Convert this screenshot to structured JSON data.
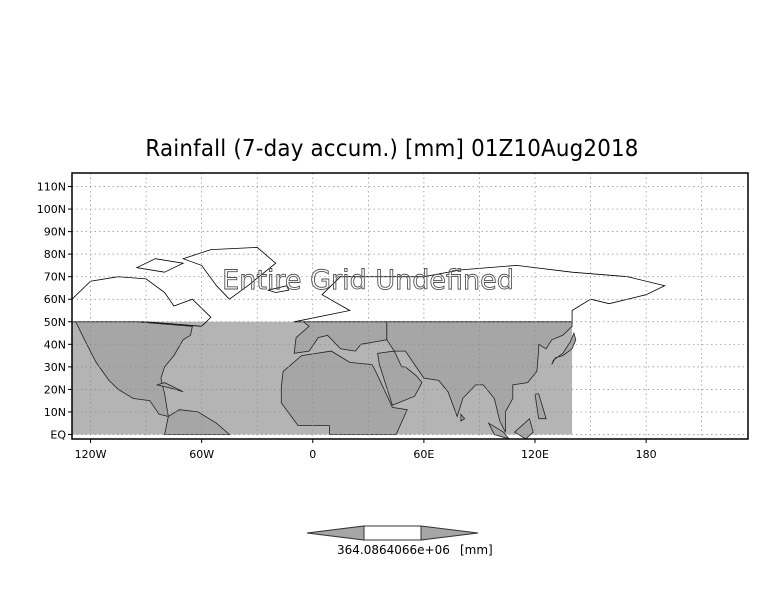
{
  "title": "Rainfall (7-day accum.) [mm] 01Z10Aug2018",
  "overlay_text": "Entire Grid Undefined",
  "lat_labels": [
    "110N",
    "100N",
    "90N",
    "80N",
    "70N",
    "60N",
    "50N",
    "40N",
    "30N",
    "20N",
    "10N",
    "EQ"
  ],
  "lon_labels": [
    "120W",
    "60W",
    "0",
    "60E",
    "120E",
    "180"
  ],
  "colorbar": {
    "label": "364.0864066e+06",
    "unit": "[mm]"
  },
  "colors": {
    "land": "#a6a6a6",
    "frame": "#000000",
    "grid": "#8c8c8c",
    "data_band": "#b4b4b4"
  },
  "map": {
    "projection": "lat-lon",
    "lon_range": [
      -130,
      235
    ],
    "lat_range": [
      -2,
      116
    ],
    "data_band_lat": [
      0,
      50
    ],
    "data_band_lon": [
      -130,
      140
    ]
  }
}
